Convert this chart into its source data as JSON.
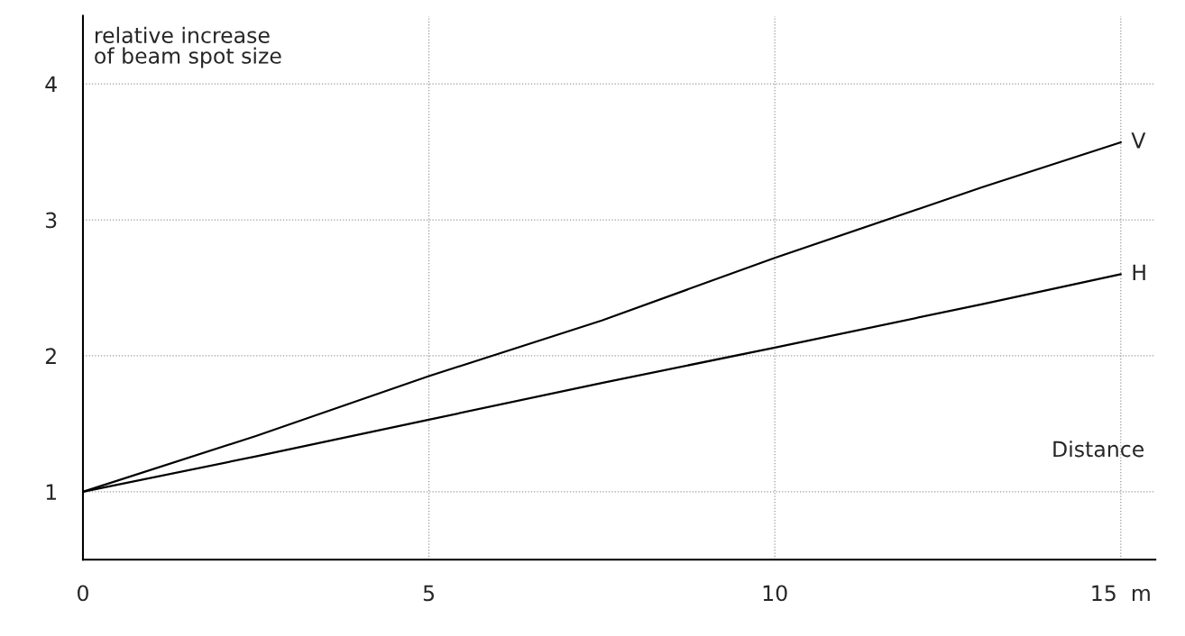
{
  "chart_data": {
    "type": "line",
    "ylabel": "relative increase\nof beam spot size",
    "xlabel": "Distance",
    "x": [
      0,
      2.5,
      5,
      7.5,
      10,
      13,
      15
    ],
    "series": [
      {
        "name": "V",
        "color": "#000000",
        "values": [
          1,
          1.41,
          1.85,
          2.26,
          2.72,
          3.24,
          3.57
        ]
      },
      {
        "name": "H",
        "color": "#000000",
        "values": [
          1,
          1.26,
          1.53,
          1.8,
          2.06,
          2.38,
          2.6
        ]
      }
    ],
    "xlim": [
      0,
      15.5
    ],
    "ylim": [
      0.5,
      4.5
    ],
    "xticks": [
      0,
      5,
      10,
      {
        "value": 15,
        "label": "15  m"
      }
    ],
    "yticks": [
      1,
      2,
      3,
      4
    ],
    "grid": true,
    "marker": "none",
    "line_style": "solid"
  }
}
